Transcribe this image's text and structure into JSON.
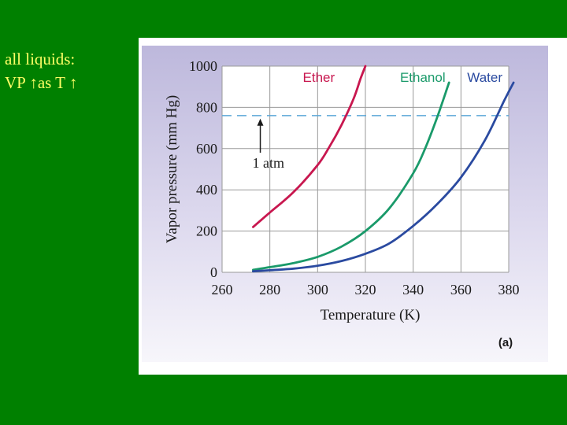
{
  "slide": {
    "line1": "all liquids:",
    "line2": "VP ↑as T ↑",
    "text_color": "#ffff66",
    "background": "#008000"
  },
  "figure": {
    "caption": "(a)",
    "panel_color": "#ccc8e2",
    "plot_bg": "#ffffff"
  },
  "chart_data": {
    "type": "line",
    "title": "",
    "xlabel": "Temperature (K)",
    "ylabel": "Vapor pressure (mm Hg)",
    "xlim": [
      260,
      380
    ],
    "ylim": [
      0,
      1000
    ],
    "xticks": [
      260,
      280,
      300,
      320,
      340,
      360,
      380
    ],
    "yticks": [
      0,
      200,
      400,
      600,
      800,
      1000
    ],
    "grid": true,
    "series": [
      {
        "name": "Ether",
        "color": "#c8174f",
        "points": [
          [
            273,
            220
          ],
          [
            280,
            290
          ],
          [
            290,
            390
          ],
          [
            300,
            520
          ],
          [
            305,
            610
          ],
          [
            310,
            715
          ],
          [
            315,
            840
          ],
          [
            318,
            940
          ],
          [
            320,
            1000
          ]
        ]
      },
      {
        "name": "Ethanol",
        "color": "#1a9a6a",
        "points": [
          [
            273,
            12
          ],
          [
            280,
            25
          ],
          [
            290,
            45
          ],
          [
            300,
            75
          ],
          [
            310,
            125
          ],
          [
            320,
            200
          ],
          [
            330,
            310
          ],
          [
            340,
            480
          ],
          [
            345,
            600
          ],
          [
            350,
            750
          ],
          [
            355,
            920
          ]
        ]
      },
      {
        "name": "Water",
        "color": "#2a4aa0",
        "points": [
          [
            273,
            5
          ],
          [
            280,
            10
          ],
          [
            290,
            18
          ],
          [
            300,
            32
          ],
          [
            310,
            55
          ],
          [
            320,
            90
          ],
          [
            330,
            140
          ],
          [
            340,
            225
          ],
          [
            350,
            330
          ],
          [
            360,
            460
          ],
          [
            370,
            640
          ],
          [
            378,
            830
          ],
          [
            382,
            920
          ]
        ]
      }
    ],
    "reference_line": {
      "label": "1 atm",
      "value": 760,
      "color": "#5aa6d8",
      "style": "dashed"
    },
    "annotation": {
      "text": "1 atm",
      "arrow_x": 276,
      "arrow_from_y": 580,
      "arrow_to_y": 745,
      "text_x": 276,
      "text_y": 530
    }
  }
}
